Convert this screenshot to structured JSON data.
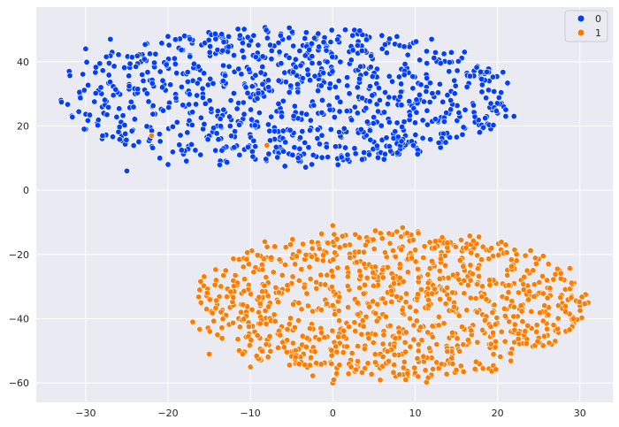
{
  "chart_data": {
    "type": "scatter",
    "title": "",
    "xlabel": "",
    "ylabel": "",
    "xlim": [
      -36,
      34
    ],
    "ylim": [
      -66,
      57
    ],
    "xticks": [
      -30,
      -20,
      -10,
      0,
      10,
      20,
      30
    ],
    "yticks": [
      40,
      20,
      0,
      -20,
      -40,
      -60
    ],
    "xtick_labels": [
      "−30",
      "−20",
      "−10",
      "0",
      "10",
      "20",
      "30"
    ],
    "ytick_labels": [
      "40",
      "20",
      "0",
      "−20",
      "−40",
      "−60"
    ],
    "grid": true,
    "legend_position": "top-right",
    "series": [
      {
        "name": "0",
        "color": "#023eff",
        "cluster": {
          "x_range": [
            -33,
            22
          ],
          "y_range": [
            6,
            51
          ],
          "center": [
            -6,
            30
          ]
        },
        "points": [
          [
            -33,
            28
          ],
          [
            -32,
            37
          ],
          [
            -30,
            19
          ],
          [
            -30,
            44
          ],
          [
            -28,
            16
          ],
          [
            -27,
            47
          ],
          [
            -25,
            6
          ],
          [
            -24,
            30
          ],
          [
            -22,
            17
          ],
          [
            -21,
            10
          ],
          [
            -20,
            8
          ],
          [
            -19,
            28
          ],
          [
            -18,
            48
          ],
          [
            -16,
            11
          ],
          [
            -15,
            33
          ],
          [
            -14,
            20
          ],
          [
            -13,
            9
          ],
          [
            -12,
            42
          ],
          [
            -10,
            29
          ],
          [
            -8,
            50
          ],
          [
            -7,
            12
          ],
          [
            -5,
            18
          ],
          [
            -3,
            36
          ],
          [
            -2,
            47
          ],
          [
            0,
            25
          ],
          [
            1,
            40
          ],
          [
            2,
            9
          ],
          [
            3,
            32
          ],
          [
            5,
            15
          ],
          [
            6,
            44
          ],
          [
            8,
            28
          ],
          [
            9,
            38
          ],
          [
            10,
            21
          ],
          [
            12,
            47
          ],
          [
            13,
            33
          ],
          [
            14,
            17
          ],
          [
            16,
            43
          ],
          [
            17,
            27
          ],
          [
            18,
            36
          ],
          [
            19,
            34
          ],
          [
            20,
            24
          ],
          [
            21,
            23
          ],
          [
            22,
            23
          ]
        ]
      },
      {
        "name": "1",
        "color": "#ff7c00",
        "cluster": {
          "x_range": [
            -17,
            31
          ],
          "y_range": [
            -60,
            -11
          ],
          "center": [
            7,
            -35
          ]
        },
        "points": [
          [
            -17,
            -41
          ],
          [
            -16,
            -35
          ],
          [
            -15,
            -51
          ],
          [
            -14,
            -45
          ],
          [
            -13,
            -25
          ],
          [
            -11,
            -32
          ],
          [
            -10,
            -55
          ],
          [
            -9,
            -38
          ],
          [
            -8,
            -21
          ],
          [
            -6,
            -47
          ],
          [
            -5,
            -29
          ],
          [
            -4,
            -52
          ],
          [
            -3,
            -36
          ],
          [
            -1,
            -19
          ],
          [
            0,
            -11
          ],
          [
            0,
            -60
          ],
          [
            1,
            -43
          ],
          [
            2,
            -31
          ],
          [
            3,
            -55
          ],
          [
            4,
            -24
          ],
          [
            5,
            -38
          ],
          [
            6,
            -15
          ],
          [
            7,
            -48
          ],
          [
            8,
            -29
          ],
          [
            9,
            -58
          ],
          [
            10,
            -34
          ],
          [
            11,
            -21
          ],
          [
            12,
            -45
          ],
          [
            13,
            -30
          ],
          [
            14,
            -53
          ],
          [
            15,
            -38
          ],
          [
            16,
            -25
          ],
          [
            17,
            -42
          ],
          [
            18,
            -32
          ],
          [
            19,
            -48
          ],
          [
            21,
            -17
          ],
          [
            22,
            -29
          ],
          [
            23,
            -37
          ],
          [
            24,
            -33
          ],
          [
            25,
            -46
          ],
          [
            26,
            -39
          ],
          [
            27,
            -47
          ],
          [
            28,
            -37
          ],
          [
            29,
            -33
          ],
          [
            30,
            -36
          ],
          [
            31,
            -35
          ],
          [
            -22,
            17
          ],
          [
            -8,
            14
          ]
        ]
      }
    ]
  }
}
